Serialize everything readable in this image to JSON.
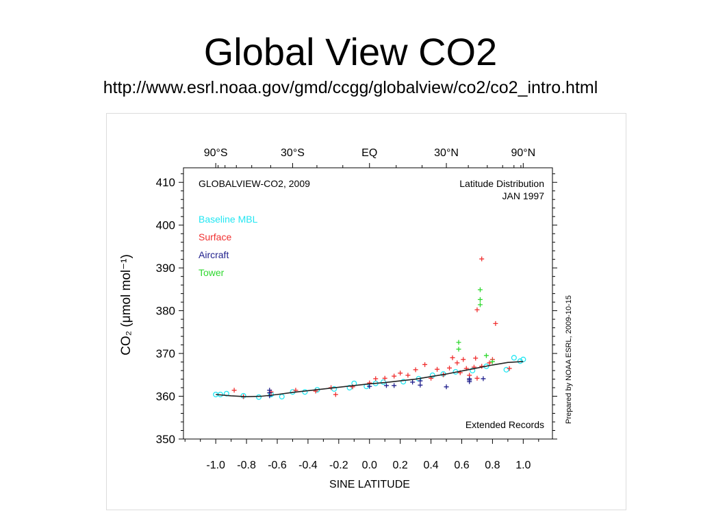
{
  "slide": {
    "title": "Global View CO2",
    "subtitle": "http://www.esrl.noaa.gov/gmd/ccgg/globalview/co2/co2_intro.html"
  },
  "chart_data": {
    "type": "scatter",
    "title": "GLOBALVIEW-CO2, 2009",
    "subtitle": "Latitude Distribution",
    "period": "JAN 1997",
    "xlabel": "SINE LATITUDE",
    "ylabel": "CO₂ (μmol mol⁻¹)",
    "xlim": [
      -1.21,
      1.19
    ],
    "ylim": [
      350,
      413.4
    ],
    "grid": false,
    "legend_position": "upper-left",
    "xticks": {
      "values": [
        -1.0,
        -0.8,
        -0.6,
        -0.4,
        -0.2,
        0.0,
        0.2,
        0.4,
        0.6,
        0.8,
        1.0
      ],
      "labels": [
        "-1.0",
        "-0.8",
        "-0.6",
        "-0.4",
        "-0.2",
        "0.0",
        "0.2",
        "0.4",
        "0.6",
        "0.8",
        "1.0"
      ]
    },
    "yticks": {
      "values": [
        350,
        360,
        370,
        380,
        390,
        400,
        410
      ],
      "labels": [
        "350",
        "360",
        "370",
        "380",
        "390",
        "400",
        "410"
      ]
    },
    "top_axis": {
      "values": [
        -1.0,
        -0.5,
        0.0,
        0.5,
        1.0
      ],
      "labels": [
        "90°S",
        "30°S",
        "EQ",
        "30°N",
        "90°N"
      ]
    },
    "annotations": {
      "records": "Extended Records",
      "credit": "Prepared by NOAA ESRL, 2009-10-15"
    },
    "series": [
      {
        "name": "Baseline MBL",
        "color": "#22e6f2",
        "marker": "circle",
        "points": [
          [
            -1.0,
            360.4
          ],
          [
            -0.97,
            360.4
          ],
          [
            -0.93,
            360.6
          ],
          [
            -0.82,
            360.1
          ],
          [
            -0.72,
            359.8
          ],
          [
            -0.64,
            360.4
          ],
          [
            -0.57,
            359.9
          ],
          [
            -0.5,
            361.0
          ],
          [
            -0.42,
            361.0
          ],
          [
            -0.34,
            361.5
          ],
          [
            -0.23,
            361.7
          ],
          [
            -0.13,
            362.0
          ],
          [
            -0.1,
            363.0
          ],
          [
            -0.02,
            362.3
          ],
          [
            0.04,
            363.0
          ],
          [
            0.09,
            363.3
          ],
          [
            0.22,
            363.4
          ],
          [
            0.32,
            364.1
          ],
          [
            0.41,
            364.9
          ],
          [
            0.48,
            365.2
          ],
          [
            0.56,
            365.7
          ],
          [
            0.67,
            366.0
          ],
          [
            0.76,
            367.0
          ],
          [
            0.89,
            366.2
          ],
          [
            0.94,
            369.0
          ],
          [
            0.98,
            368.2
          ],
          [
            1.0,
            368.6
          ]
        ]
      },
      {
        "name": "Surface",
        "color": "#f03030",
        "marker": "plus",
        "points": [
          [
            -0.88,
            361.4
          ],
          [
            -0.82,
            359.9
          ],
          [
            -0.64,
            361.0
          ],
          [
            -0.48,
            361.4
          ],
          [
            -0.35,
            361.2
          ],
          [
            -0.25,
            362.0
          ],
          [
            -0.22,
            360.4
          ],
          [
            -0.11,
            362.2
          ],
          [
            0.0,
            363.1
          ],
          [
            0.04,
            364.1
          ],
          [
            0.1,
            364.2
          ],
          [
            0.16,
            364.7
          ],
          [
            0.2,
            365.4
          ],
          [
            0.25,
            364.9
          ],
          [
            0.3,
            366.2
          ],
          [
            0.36,
            367.4
          ],
          [
            0.4,
            364.2
          ],
          [
            0.44,
            366.3
          ],
          [
            0.48,
            365.0
          ],
          [
            0.52,
            366.6
          ],
          [
            0.54,
            369.0
          ],
          [
            0.57,
            367.8
          ],
          [
            0.59,
            365.5
          ],
          [
            0.61,
            368.6
          ],
          [
            0.63,
            366.5
          ],
          [
            0.65,
            364.9
          ],
          [
            0.68,
            366.8
          ],
          [
            0.69,
            368.9
          ],
          [
            0.7,
            364.2
          ],
          [
            0.73,
            367.0
          ],
          [
            0.7,
            380.2
          ],
          [
            0.73,
            392.1
          ],
          [
            0.82,
            377.0
          ],
          [
            0.78,
            367.8
          ],
          [
            0.8,
            368.6
          ],
          [
            0.91,
            366.5
          ]
        ]
      },
      {
        "name": "Aircraft",
        "color": "#1f1f8c",
        "marker": "plus",
        "points": [
          [
            -0.65,
            361.4
          ],
          [
            -0.65,
            360.1
          ],
          [
            -0.65,
            360.8
          ],
          [
            0.0,
            362.3
          ],
          [
            0.11,
            362.5
          ],
          [
            0.16,
            362.5
          ],
          [
            0.28,
            363.3
          ],
          [
            0.33,
            362.6
          ],
          [
            0.33,
            363.6
          ],
          [
            0.5,
            362.2
          ],
          [
            0.65,
            364.1
          ],
          [
            0.65,
            363.4
          ],
          [
            0.65,
            363.8
          ],
          [
            0.74,
            364.1
          ]
        ]
      },
      {
        "name": "Tower",
        "color": "#2ed82e",
        "marker": "plus",
        "points": [
          [
            0.58,
            372.6
          ],
          [
            0.58,
            371.0
          ],
          [
            0.72,
            384.9
          ],
          [
            0.72,
            382.6
          ],
          [
            0.72,
            381.4
          ],
          [
            0.76,
            369.5
          ],
          [
            0.8,
            368.1
          ]
        ]
      }
    ],
    "curve": {
      "color": "#222222",
      "x": [
        -1.0,
        -0.9,
        -0.8,
        -0.7,
        -0.6,
        -0.5,
        -0.4,
        -0.3,
        -0.2,
        -0.1,
        0.0,
        0.1,
        0.2,
        0.3,
        0.4,
        0.5,
        0.6,
        0.7,
        0.8,
        0.9,
        1.0
      ],
      "y": [
        360.4,
        360.1,
        359.9,
        360.0,
        360.4,
        360.9,
        361.3,
        361.7,
        362.1,
        362.5,
        362.9,
        363.2,
        363.6,
        364.0,
        364.6,
        365.2,
        365.9,
        366.6,
        367.3,
        367.9,
        368.1
      ]
    }
  }
}
